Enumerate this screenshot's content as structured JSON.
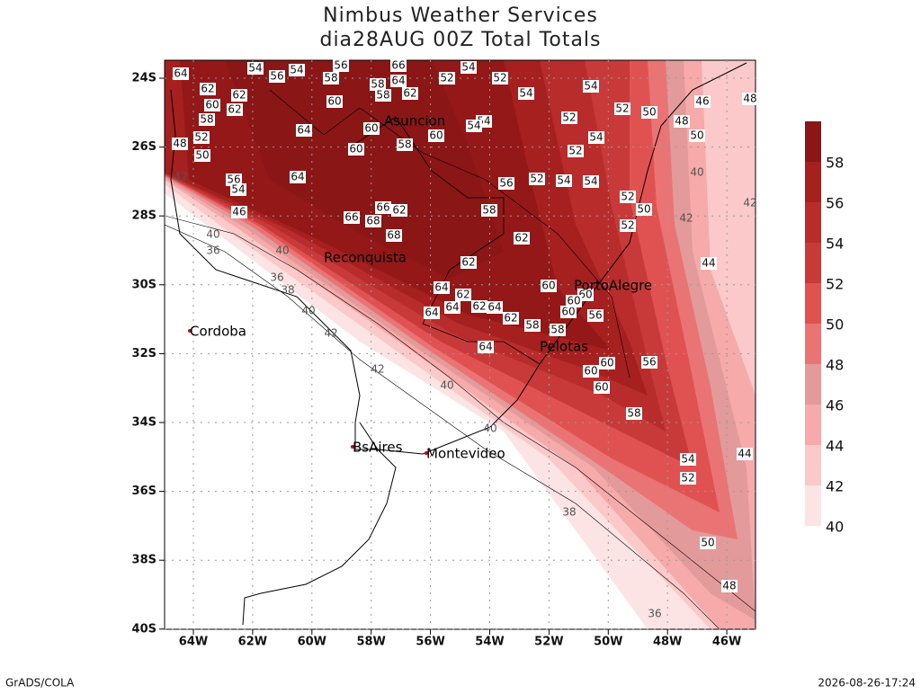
{
  "header": {
    "title": "Nimbus Weather Services",
    "subtitle": "dia28AUG 00Z Total Totals"
  },
  "map": {
    "lat_labels": [
      "24S",
      "26S",
      "28S",
      "30S",
      "32S",
      "34S",
      "36S",
      "38S",
      "40S"
    ],
    "lon_labels": [
      "64W",
      "62W",
      "60W",
      "58W",
      "56W",
      "54W",
      "52W",
      "50W",
      "48W",
      "46W"
    ],
    "cities": [
      "Asuncion",
      "Reconquista",
      "PortoAlegre",
      "Pelotas",
      "Cordoba",
      "BsAires",
      "Montevideo"
    ],
    "contour_labels": [
      54,
      56,
      54,
      56,
      58,
      66,
      64,
      58,
      58,
      62,
      54,
      52,
      52,
      54,
      54,
      52,
      52,
      50,
      48,
      46,
      48,
      64,
      62,
      62,
      60,
      62,
      58,
      60,
      64,
      60,
      60,
      58,
      60,
      54,
      54,
      54,
      50,
      52,
      48,
      52,
      50,
      42,
      56,
      54,
      64,
      56,
      52,
      54,
      54,
      52,
      50,
      58,
      62,
      66,
      66,
      68,
      68,
      62,
      62,
      52,
      42,
      40,
      42,
      44,
      46,
      40,
      36,
      40,
      36,
      38,
      40,
      42,
      42,
      40,
      40,
      44,
      38,
      36,
      50,
      48,
      54,
      52,
      58,
      60,
      60,
      60,
      56,
      64,
      58,
      62,
      64,
      62,
      62,
      64,
      64,
      64,
      60,
      60,
      60,
      56,
      58,
      60
    ]
  },
  "colorbar": {
    "levels": [
      40,
      42,
      44,
      46,
      48,
      50,
      52,
      54,
      56,
      58
    ],
    "colors": [
      "#fde4e4",
      "#fbc9c9",
      "#f6aaaa",
      "#e39a9a",
      "#ea7474",
      "#e05252",
      "#c83a3a",
      "#b82c2c",
      "#a62020",
      "#941818",
      "#8a1616"
    ]
  },
  "footer": {
    "left": "GrADS/COLA",
    "right": "2026-08-26-17:24"
  }
}
